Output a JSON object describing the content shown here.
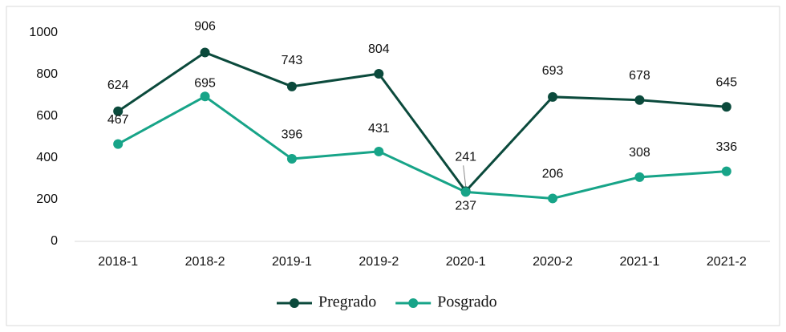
{
  "chart_data": {
    "type": "line",
    "categories": [
      "2018-1",
      "2018-2",
      "2019-1",
      "2019-2",
      "2020-1",
      "2020-2",
      "2021-1",
      "2021-2"
    ],
    "series": [
      {
        "name": "Pregrado",
        "color": "#0b4a3c",
        "values": [
          624,
          906,
          743,
          804,
          241,
          693,
          678,
          645
        ]
      },
      {
        "name": "Posgrado",
        "color": "#17a488",
        "values": [
          467,
          695,
          396,
          431,
          237,
          206,
          308,
          336
        ]
      }
    ],
    "ylim": [
      0,
      1000
    ],
    "yticks": [
      0,
      200,
      400,
      600,
      800,
      1000
    ],
    "grid": false,
    "legend": "bottom"
  }
}
